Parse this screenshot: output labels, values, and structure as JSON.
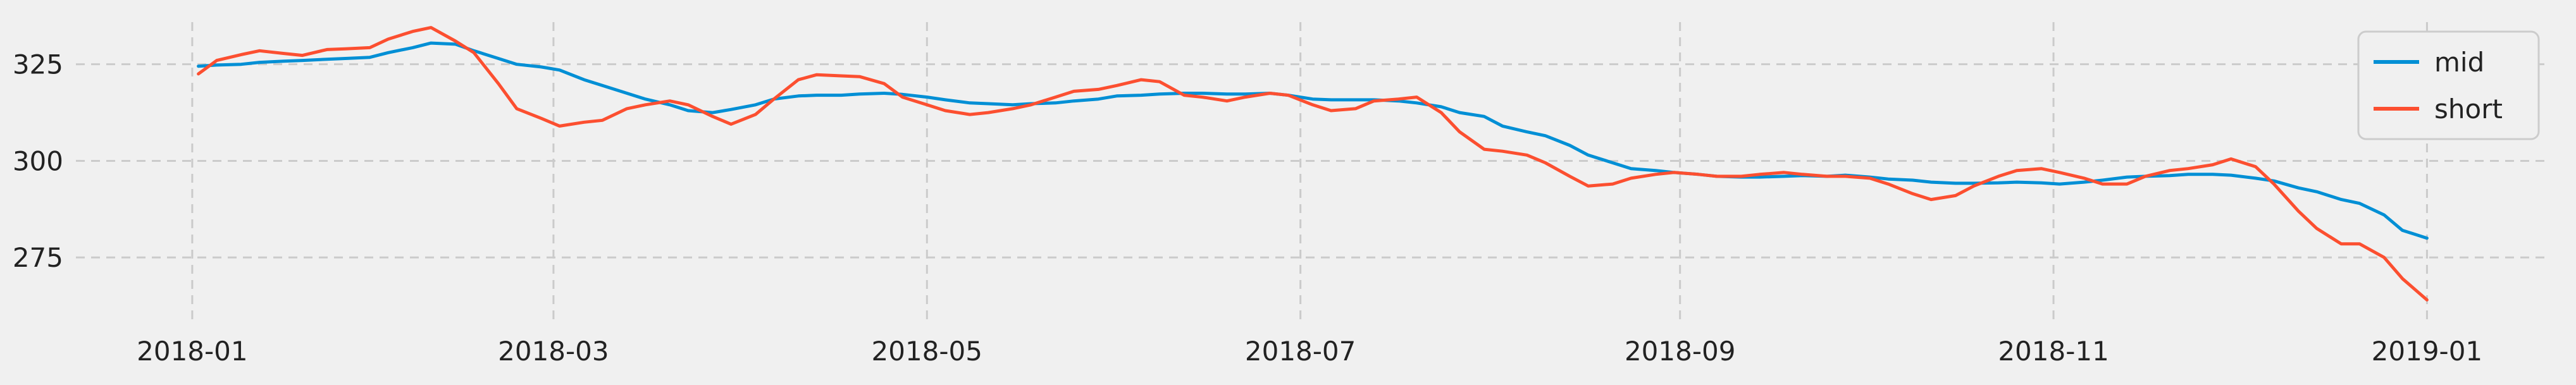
{
  "chart_data": {
    "type": "line",
    "title": "",
    "xlabel": "",
    "ylabel": "",
    "xlim": [
      "2017-12-13",
      "2019-01-21"
    ],
    "ylim": [
      259,
      340
    ],
    "grid": true,
    "legend_position": "top-right",
    "x_ticks": [
      {
        "date": "2018-01-01",
        "label": "2018-01"
      },
      {
        "date": "2018-03-01",
        "label": "2018-03"
      },
      {
        "date": "2018-05-01",
        "label": "2018-05"
      },
      {
        "date": "2018-07-01",
        "label": "2018-07"
      },
      {
        "date": "2018-09-01",
        "label": "2018-09"
      },
      {
        "date": "2018-11-01",
        "label": "2018-11"
      },
      {
        "date": "2019-01-01",
        "label": "2019-01"
      }
    ],
    "y_ticks": [
      {
        "value": 275,
        "label": "275"
      },
      {
        "value": 300,
        "label": "300"
      },
      {
        "value": 325,
        "label": "325"
      }
    ],
    "series": [
      {
        "name": "mid",
        "color": "#008fd5",
        "points": [
          [
            "2018-01-02",
            324.5
          ],
          [
            "2018-01-05",
            324.8
          ],
          [
            "2018-01-09",
            325.0
          ],
          [
            "2018-01-12",
            325.5
          ],
          [
            "2018-01-16",
            325.8
          ],
          [
            "2018-01-19",
            326.0
          ],
          [
            "2018-01-23",
            326.3
          ],
          [
            "2018-01-26",
            326.5
          ],
          [
            "2018-01-30",
            326.8
          ],
          [
            "2018-02-02",
            328.0
          ],
          [
            "2018-02-06",
            329.3
          ],
          [
            "2018-02-09",
            330.5
          ],
          [
            "2018-02-13",
            330.2
          ],
          [
            "2018-02-16",
            328.5
          ],
          [
            "2018-02-20",
            326.5
          ],
          [
            "2018-02-23",
            325.0
          ],
          [
            "2018-02-27",
            324.3
          ],
          [
            "2018-03-02",
            323.5
          ],
          [
            "2018-03-06",
            321.0
          ],
          [
            "2018-03-09",
            319.5
          ],
          [
            "2018-03-13",
            317.5
          ],
          [
            "2018-03-16",
            316.0
          ],
          [
            "2018-03-20",
            314.5
          ],
          [
            "2018-03-23",
            313.0
          ],
          [
            "2018-03-27",
            312.5
          ],
          [
            "2018-03-30",
            313.3
          ],
          [
            "2018-04-03",
            314.5
          ],
          [
            "2018-04-06",
            316.0
          ],
          [
            "2018-04-10",
            316.8
          ],
          [
            "2018-04-13",
            317.0
          ],
          [
            "2018-04-17",
            317.0
          ],
          [
            "2018-04-20",
            317.3
          ],
          [
            "2018-04-24",
            317.5
          ],
          [
            "2018-04-27",
            317.2
          ],
          [
            "2018-05-01",
            316.5
          ],
          [
            "2018-05-04",
            315.8
          ],
          [
            "2018-05-08",
            315.0
          ],
          [
            "2018-05-11",
            314.8
          ],
          [
            "2018-05-15",
            314.5
          ],
          [
            "2018-05-18",
            314.8
          ],
          [
            "2018-05-22",
            315.0
          ],
          [
            "2018-05-25",
            315.5
          ],
          [
            "2018-05-29",
            316.0
          ],
          [
            "2018-06-01",
            316.8
          ],
          [
            "2018-06-05",
            317.0
          ],
          [
            "2018-06-08",
            317.3
          ],
          [
            "2018-06-12",
            317.5
          ],
          [
            "2018-06-15",
            317.5
          ],
          [
            "2018-06-19",
            317.3
          ],
          [
            "2018-06-22",
            317.3
          ],
          [
            "2018-06-26",
            317.5
          ],
          [
            "2018-06-29",
            317.0
          ],
          [
            "2018-07-03",
            316.0
          ],
          [
            "2018-07-06",
            315.8
          ],
          [
            "2018-07-10",
            315.8
          ],
          [
            "2018-07-13",
            315.8
          ],
          [
            "2018-07-17",
            315.5
          ],
          [
            "2018-07-20",
            315.0
          ],
          [
            "2018-07-24",
            314.0
          ],
          [
            "2018-07-27",
            312.5
          ],
          [
            "2018-07-31",
            311.5
          ],
          [
            "2018-08-03",
            309.0
          ],
          [
            "2018-08-07",
            307.5
          ],
          [
            "2018-08-10",
            306.5
          ],
          [
            "2018-08-14",
            304.0
          ],
          [
            "2018-08-17",
            301.5
          ],
          [
            "2018-08-21",
            299.5
          ],
          [
            "2018-08-24",
            298.0
          ],
          [
            "2018-08-28",
            297.5
          ],
          [
            "2018-08-31",
            297.0
          ],
          [
            "2018-09-04",
            296.5
          ],
          [
            "2018-09-07",
            296.0
          ],
          [
            "2018-09-11",
            295.8
          ],
          [
            "2018-09-14",
            295.8
          ],
          [
            "2018-09-18",
            296.0
          ],
          [
            "2018-09-21",
            296.2
          ],
          [
            "2018-09-25",
            296.0
          ],
          [
            "2018-09-28",
            296.3
          ],
          [
            "2018-10-02",
            295.8
          ],
          [
            "2018-10-05",
            295.3
          ],
          [
            "2018-10-09",
            295.0
          ],
          [
            "2018-10-12",
            294.5
          ],
          [
            "2018-10-16",
            294.2
          ],
          [
            "2018-10-19",
            294.2
          ],
          [
            "2018-10-23",
            294.3
          ],
          [
            "2018-10-26",
            294.5
          ],
          [
            "2018-10-30",
            294.3
          ],
          [
            "2018-11-02",
            294.0
          ],
          [
            "2018-11-06",
            294.5
          ],
          [
            "2018-11-09",
            295.0
          ],
          [
            "2018-11-13",
            295.8
          ],
          [
            "2018-11-16",
            296.0
          ],
          [
            "2018-11-20",
            296.2
          ],
          [
            "2018-11-23",
            296.5
          ],
          [
            "2018-11-27",
            296.5
          ],
          [
            "2018-11-30",
            296.3
          ],
          [
            "2018-12-04",
            295.5
          ],
          [
            "2018-12-07",
            294.8
          ],
          [
            "2018-12-11",
            293.0
          ],
          [
            "2018-12-14",
            292.0
          ],
          [
            "2018-12-18",
            290.0
          ],
          [
            "2018-12-21",
            289.0
          ],
          [
            "2018-12-25",
            286.0
          ],
          [
            "2018-12-28",
            282.0
          ],
          [
            "2019-01-01",
            280.0
          ]
        ]
      },
      {
        "name": "short",
        "color": "#fc4f30",
        "points": [
          [
            "2018-01-02",
            322.5
          ],
          [
            "2018-01-05",
            326.0
          ],
          [
            "2018-01-09",
            327.5
          ],
          [
            "2018-01-12",
            328.5
          ],
          [
            "2018-01-16",
            327.8
          ],
          [
            "2018-01-19",
            327.3
          ],
          [
            "2018-01-23",
            328.8
          ],
          [
            "2018-01-26",
            329.0
          ],
          [
            "2018-01-30",
            329.3
          ],
          [
            "2018-02-02",
            331.5
          ],
          [
            "2018-02-06",
            333.5
          ],
          [
            "2018-02-09",
            334.5
          ],
          [
            "2018-02-13",
            331.0
          ],
          [
            "2018-02-16",
            328.0
          ],
          [
            "2018-02-20",
            320.0
          ],
          [
            "2018-02-23",
            313.5
          ],
          [
            "2018-02-27",
            311.0
          ],
          [
            "2018-03-02",
            309.0
          ],
          [
            "2018-03-06",
            310.0
          ],
          [
            "2018-03-09",
            310.5
          ],
          [
            "2018-03-13",
            313.5
          ],
          [
            "2018-03-16",
            314.5
          ],
          [
            "2018-03-20",
            315.5
          ],
          [
            "2018-03-23",
            314.5
          ],
          [
            "2018-03-27",
            311.5
          ],
          [
            "2018-03-30",
            309.5
          ],
          [
            "2018-04-03",
            312.0
          ],
          [
            "2018-04-06",
            316.0
          ],
          [
            "2018-04-10",
            321.0
          ],
          [
            "2018-04-13",
            322.3
          ],
          [
            "2018-04-17",
            322.0
          ],
          [
            "2018-04-20",
            321.8
          ],
          [
            "2018-04-24",
            320.0
          ],
          [
            "2018-04-27",
            316.5
          ],
          [
            "2018-05-01",
            314.5
          ],
          [
            "2018-05-04",
            313.0
          ],
          [
            "2018-05-08",
            312.0
          ],
          [
            "2018-05-11",
            312.5
          ],
          [
            "2018-05-15",
            313.5
          ],
          [
            "2018-05-18",
            314.5
          ],
          [
            "2018-05-22",
            316.5
          ],
          [
            "2018-05-25",
            318.0
          ],
          [
            "2018-05-29",
            318.5
          ],
          [
            "2018-06-01",
            319.5
          ],
          [
            "2018-06-05",
            321.0
          ],
          [
            "2018-06-08",
            320.5
          ],
          [
            "2018-06-12",
            317.0
          ],
          [
            "2018-06-15",
            316.5
          ],
          [
            "2018-06-19",
            315.5
          ],
          [
            "2018-06-22",
            316.5
          ],
          [
            "2018-06-26",
            317.5
          ],
          [
            "2018-06-29",
            317.0
          ],
          [
            "2018-07-03",
            314.5
          ],
          [
            "2018-07-06",
            313.0
          ],
          [
            "2018-07-10",
            313.5
          ],
          [
            "2018-07-13",
            315.5
          ],
          [
            "2018-07-17",
            316.0
          ],
          [
            "2018-07-20",
            316.5
          ],
          [
            "2018-07-24",
            312.5
          ],
          [
            "2018-07-27",
            307.5
          ],
          [
            "2018-07-31",
            303.0
          ],
          [
            "2018-08-03",
            302.5
          ],
          [
            "2018-08-07",
            301.5
          ],
          [
            "2018-08-10",
            299.5
          ],
          [
            "2018-08-14",
            296.0
          ],
          [
            "2018-08-17",
            293.5
          ],
          [
            "2018-08-21",
            294.0
          ],
          [
            "2018-08-24",
            295.5
          ],
          [
            "2018-08-28",
            296.5
          ],
          [
            "2018-08-31",
            297.0
          ],
          [
            "2018-09-04",
            296.5
          ],
          [
            "2018-09-07",
            296.0
          ],
          [
            "2018-09-11",
            296.0
          ],
          [
            "2018-09-14",
            296.5
          ],
          [
            "2018-09-18",
            297.0
          ],
          [
            "2018-09-21",
            296.5
          ],
          [
            "2018-09-25",
            296.0
          ],
          [
            "2018-09-28",
            296.0
          ],
          [
            "2018-10-02",
            295.5
          ],
          [
            "2018-10-05",
            294.0
          ],
          [
            "2018-10-09",
            291.5
          ],
          [
            "2018-10-12",
            290.0
          ],
          [
            "2018-10-16",
            291.0
          ],
          [
            "2018-10-19",
            293.5
          ],
          [
            "2018-10-23",
            296.0
          ],
          [
            "2018-10-26",
            297.5
          ],
          [
            "2018-10-30",
            298.0
          ],
          [
            "2018-11-02",
            297.0
          ],
          [
            "2018-11-06",
            295.5
          ],
          [
            "2018-11-09",
            294.0
          ],
          [
            "2018-11-13",
            294.0
          ],
          [
            "2018-11-16",
            296.0
          ],
          [
            "2018-11-20",
            297.5
          ],
          [
            "2018-11-23",
            298.0
          ],
          [
            "2018-11-27",
            299.0
          ],
          [
            "2018-11-30",
            300.5
          ],
          [
            "2018-12-04",
            298.5
          ],
          [
            "2018-12-07",
            294.0
          ],
          [
            "2018-12-11",
            287.0
          ],
          [
            "2018-12-14",
            282.5
          ],
          [
            "2018-12-18",
            278.5
          ],
          [
            "2018-12-21",
            278.5
          ],
          [
            "2018-12-25",
            275.0
          ],
          [
            "2018-12-28",
            269.5
          ],
          [
            "2019-01-01",
            264.0
          ]
        ]
      }
    ]
  }
}
